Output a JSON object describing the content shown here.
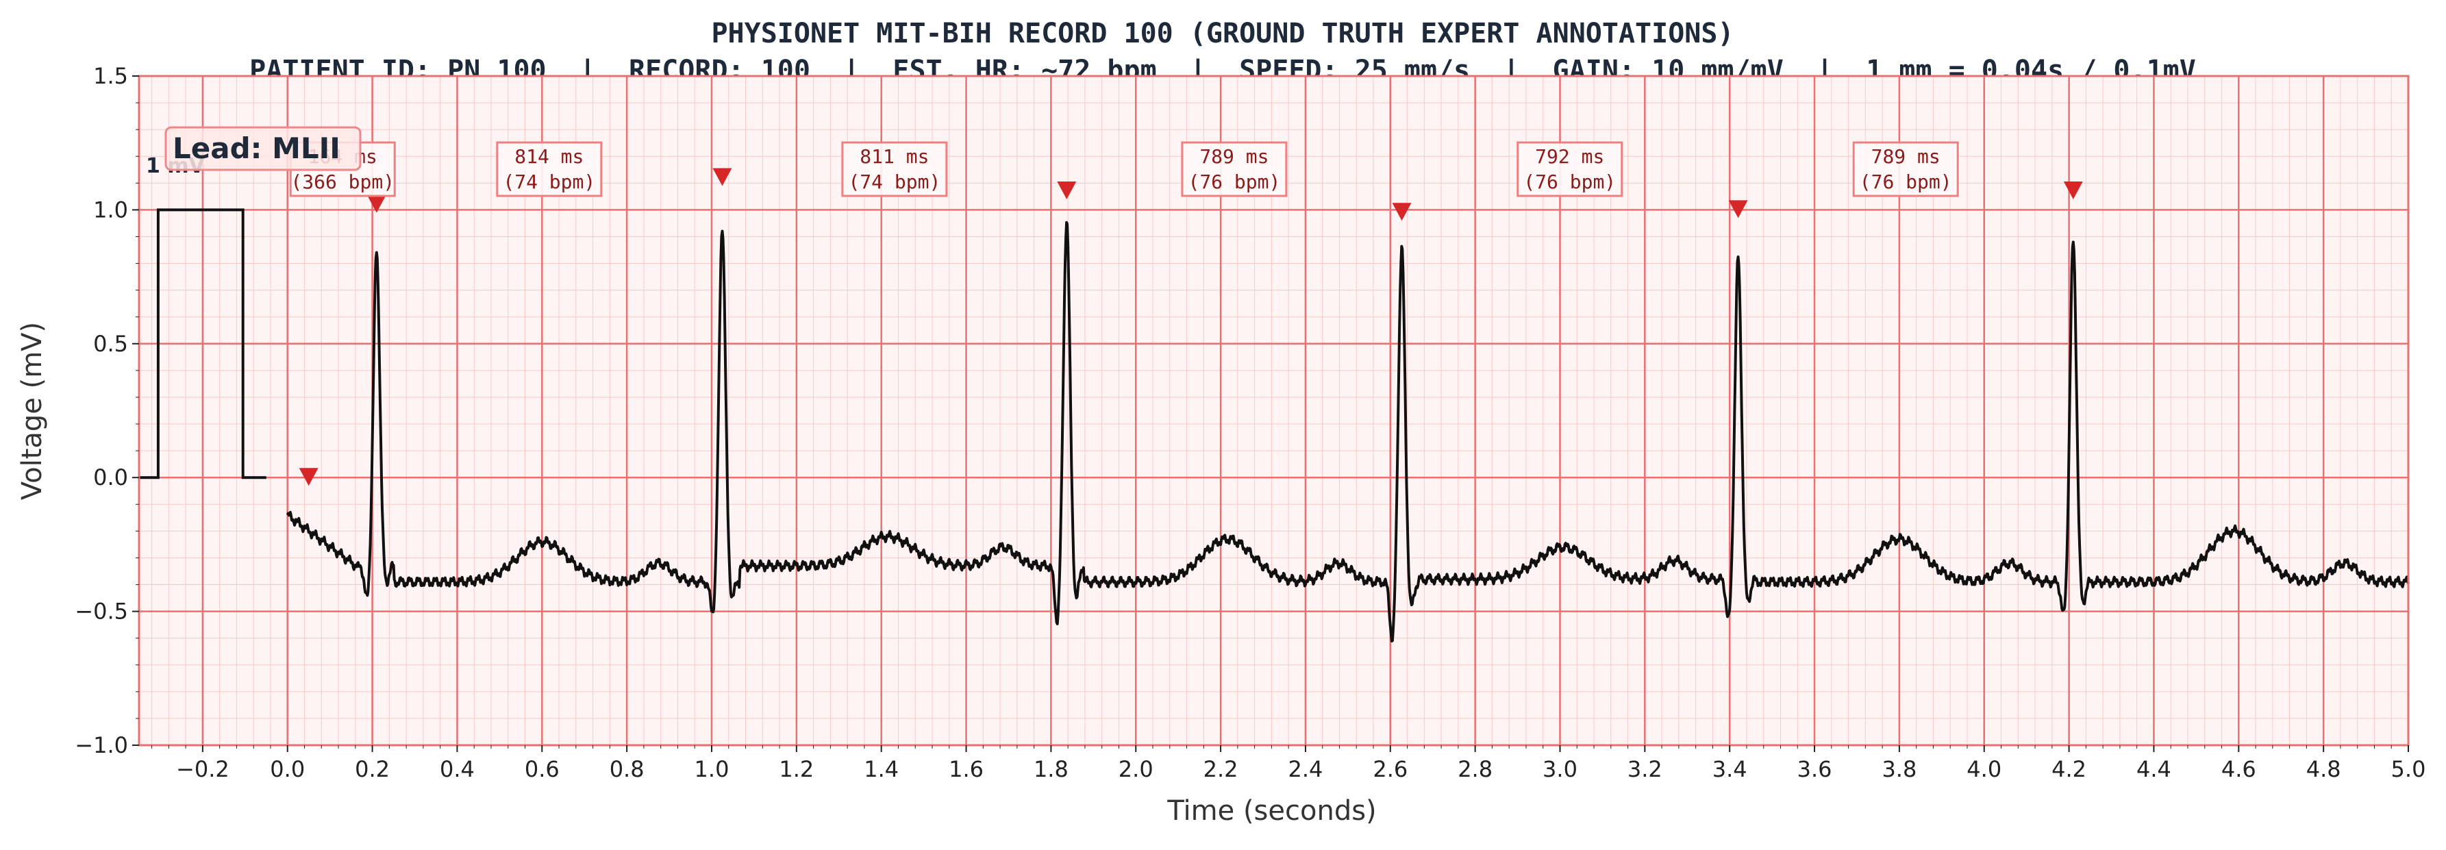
{
  "title": "PHYSIONET MIT-BIH RECORD 100 (GROUND TRUTH EXPERT ANNOTATIONS)",
  "subtitle": "PATIENT ID: PN_100  |  RECORD: 100  |  EST. HR: ~72 bpm  |  SPEED: 25 mm/s  |  GAIN: 10 mm/mV  |  1 mm = 0.04s / 0.1mV",
  "colors": {
    "background": "#fff4f4",
    "grid_minor": "#f9c8c8",
    "grid_major": "#ea7070",
    "trace": "#111111",
    "marker": "#d62728",
    "rr_box_border": "#f08080",
    "rr_text": "#8b1a1a"
  },
  "chart_data": {
    "type": "line",
    "title": "PHYSIONET MIT-BIH RECORD 100 (GROUND TRUTH EXPERT ANNOTATIONS)",
    "xlabel": "Time (seconds)",
    "ylabel": "Voltage (mV)",
    "xlim": [
      -0.35,
      5.0
    ],
    "ylim": [
      -1.0,
      1.5
    ],
    "xticks": [
      "−0.2",
      "0.0",
      "0.2",
      "0.4",
      "0.6",
      "0.8",
      "1.0",
      "1.2",
      "1.4",
      "1.6",
      "1.8",
      "2.0",
      "2.2",
      "2.4",
      "2.6",
      "2.8",
      "3.0",
      "3.2",
      "3.4",
      "3.6",
      "3.8",
      "4.0",
      "4.2",
      "4.4",
      "4.6",
      "4.8",
      "5.0"
    ],
    "xtick_values": [
      -0.2,
      0.0,
      0.2,
      0.4,
      0.6,
      0.8,
      1.0,
      1.2,
      1.4,
      1.6,
      1.8,
      2.0,
      2.2,
      2.4,
      2.6,
      2.8,
      3.0,
      3.2,
      3.4,
      3.6,
      3.8,
      4.0,
      4.2,
      4.4,
      4.6,
      4.8,
      5.0
    ],
    "yticks": [
      "−1.0",
      "−0.5",
      "0.0",
      "0.5",
      "1.0",
      "1.5"
    ],
    "ytick_values": [
      -1.0,
      -0.5,
      0.0,
      0.5,
      1.0,
      1.5
    ],
    "grid": true,
    "lead_label": "Lead: MLII",
    "calibration_label": "1 mV",
    "calibration_pulse": {
      "x": [
        -0.35,
        -0.305,
        -0.305,
        -0.105,
        -0.105,
        -0.05
      ],
      "y": [
        0,
        0,
        1,
        1,
        0,
        0
      ]
    },
    "trace_start_x": 0.0,
    "trace_start_y": -0.14,
    "beats": [
      {
        "t": 0.21,
        "r_amp": 0.84,
        "q_amp": -0.48,
        "s_amp": -0.42
      },
      {
        "t": 1.025,
        "r_amp": 0.94,
        "q_amp": -0.53,
        "s_amp": -0.47
      },
      {
        "t": 1.837,
        "r_amp": 0.96,
        "q_amp": -0.57,
        "s_amp": -0.5
      },
      {
        "t": 2.627,
        "r_amp": 0.86,
        "q_amp": -0.64,
        "s_amp": -0.52
      },
      {
        "t": 3.42,
        "r_amp": 0.82,
        "q_amp": -0.56,
        "s_amp": -0.5
      },
      {
        "t": 4.21,
        "r_amp": 0.88,
        "q_amp": -0.54,
        "s_amp": -0.5
      }
    ],
    "baseline_levels": [
      -0.33,
      -0.39,
      -0.33,
      -0.39,
      -0.38,
      -0.39,
      -0.39
    ],
    "t_wave_peaks": [
      -0.24,
      -0.22,
      -0.23,
      -0.26,
      -0.23,
      -0.2,
      -0.28,
      -0.22
    ],
    "annotations": [
      {
        "x": 0.05,
        "y": 0.0
      },
      {
        "x": 0.21,
        "y": 1.02
      },
      {
        "x": 1.025,
        "y": 1.12
      },
      {
        "x": 1.837,
        "y": 1.07
      },
      {
        "x": 2.627,
        "y": 0.99
      },
      {
        "x": 3.42,
        "y": 1.0
      },
      {
        "x": 4.21,
        "y": 1.07
      }
    ],
    "rr_intervals": [
      {
        "x": 0.13,
        "ms": "164 ms",
        "bpm": "(366 bpm)"
      },
      {
        "x": 0.617,
        "ms": "814 ms",
        "bpm": "(74 bpm)"
      },
      {
        "x": 1.431,
        "ms": "811 ms",
        "bpm": "(74 bpm)"
      },
      {
        "x": 2.232,
        "ms": "789 ms",
        "bpm": "(76 bpm)"
      },
      {
        "x": 3.023,
        "ms": "792 ms",
        "bpm": "(76 bpm)"
      },
      {
        "x": 3.815,
        "ms": "789 ms",
        "bpm": "(76 bpm)"
      }
    ]
  }
}
